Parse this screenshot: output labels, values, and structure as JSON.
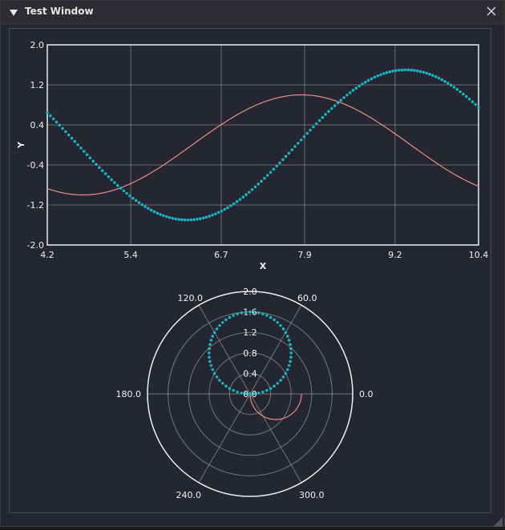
{
  "window": {
    "title": "Test Window",
    "colors": {
      "background": "#242631",
      "titlebar": "#2b2d31",
      "grid": "#8a8a8a",
      "frame": "#f0f0f0"
    },
    "icons": {
      "collapse": "triangle-down-icon",
      "close": "close-icon",
      "resize": "resize-grip-icon"
    }
  },
  "chart_data": [
    {
      "type": "line",
      "xlabel": "X",
      "ylabel": "Y",
      "xlim": [
        4.2,
        10.4
      ],
      "ylim": [
        -2.0,
        2.0
      ],
      "xticks": [
        4.2,
        5.4,
        6.7,
        7.9,
        9.2,
        10.4
      ],
      "xtick_labels": [
        "4.2",
        "5.4",
        "6.7",
        "7.9",
        "9.2",
        "10.4"
      ],
      "yticks": [
        -2.0,
        -1.2,
        -0.4,
        0.4,
        1.2,
        2.0
      ],
      "ytick_labels": [
        "-2.0",
        "-1.2",
        "-0.4",
        "0.4",
        "1.2",
        "2.0"
      ],
      "grid": true,
      "series": [
        {
          "style": "line",
          "color": "#f08a8a",
          "formula": "y = sin(x)",
          "samples": 200
        },
        {
          "style": "points",
          "color": "#19b3c4",
          "formula": "y = 1.5*sin(x - 1.5)",
          "samples": 141
        }
      ]
    },
    {
      "type": "polar",
      "rlim": [
        0,
        2.0
      ],
      "rticks": [
        0.0,
        0.4,
        0.8,
        1.2,
        1.6,
        2.0
      ],
      "rtick_labels": [
        "0.0",
        "0.4",
        "0.8",
        "1.2",
        "1.6",
        "2.0"
      ],
      "angle_ticks": [
        0,
        60,
        120,
        180,
        240,
        300
      ],
      "angle_labels": [
        "0.0",
        "60.0",
        "120.0",
        "180.0",
        "240.0",
        "300.0"
      ],
      "grid": true,
      "series": [
        {
          "style": "line",
          "color": "#f08a8a",
          "formula": "r = cos(theta)",
          "theta_range": [
            -90,
            0
          ],
          "samples": 200
        },
        {
          "style": "points",
          "color": "#19b3c4",
          "formula": "r = 1.6*sin(theta)",
          "theta_range": [
            0,
            180
          ],
          "samples": 60
        }
      ]
    }
  ]
}
